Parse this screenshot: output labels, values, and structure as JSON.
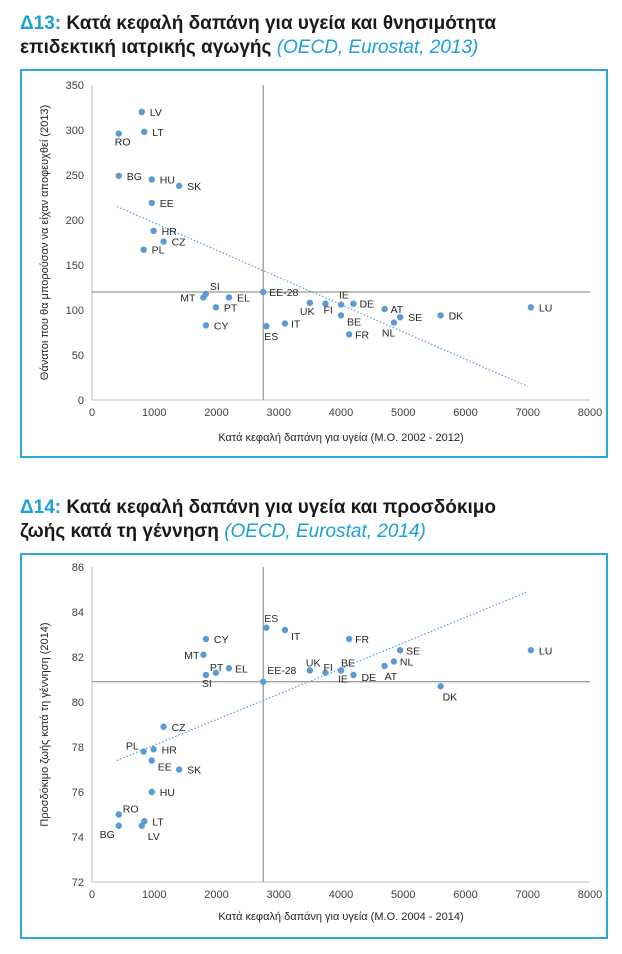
{
  "charts": [
    {
      "code": "Δ13:",
      "title": "Κατά κεφαλή δαπάνη για υγεία και θνησιμότητα επιδεκτική ιατρικής αγωγής",
      "title_line1": "Κατά κεφαλή δαπάνη για υγεία και θνησιμότητα",
      "title_line2": "επιδεκτική ιατρικής αγωγής",
      "source": "(OECD, Eurostat, 2013)"
    },
    {
      "code": "Δ14:",
      "title": "Κατά κεφαλή δαπάνη για υγεία και προσδόκιμο ζωής κατά τη γέννηση",
      "title_line1": "Κατά κεφαλή δαπάνη για υγεία και προσδόκιμο",
      "title_line2": "ζωής κατά τη γέννηση",
      "source": "(OECD, Eurostat, 2014)"
    }
  ],
  "colors": {
    "accent": "#1ba1d8",
    "point": "#5b9bd5",
    "trend": "#5b9bd5",
    "axis": "#7f7f7f"
  },
  "chart_data": [
    {
      "type": "scatter",
      "xlabel": "Κατά κεφαλή δαπάνη για υγεία (Μ.Ο. 2002 - 2012)",
      "ylabel": "Θάνατοι που θα μπορούσαν να είχαν αποφευχθεί (2013)",
      "xlim": [
        0,
        8000
      ],
      "ylim": [
        0,
        350
      ],
      "xticks": [
        0,
        1000,
        2000,
        3000,
        4000,
        5000,
        6000,
        7000,
        8000
      ],
      "yticks": [
        0,
        50,
        100,
        150,
        200,
        250,
        300,
        350
      ],
      "reference_lines": {
        "x": 2750,
        "y": 120
      },
      "trendline": [
        [
          400,
          215
        ],
        [
          7000,
          15
        ]
      ],
      "grid": false,
      "points": [
        {
          "label": "LV",
          "x": 800,
          "y": 320
        },
        {
          "label": "RO",
          "x": 430,
          "y": 296
        },
        {
          "label": "LT",
          "x": 840,
          "y": 298
        },
        {
          "label": "BG",
          "x": 430,
          "y": 249
        },
        {
          "label": "HU",
          "x": 960,
          "y": 245
        },
        {
          "label": "SK",
          "x": 1400,
          "y": 238
        },
        {
          "label": "EE",
          "x": 960,
          "y": 219
        },
        {
          "label": "HR",
          "x": 990,
          "y": 188
        },
        {
          "label": "CZ",
          "x": 1150,
          "y": 176
        },
        {
          "label": "PL",
          "x": 830,
          "y": 167
        },
        {
          "label": "SI",
          "x": 1830,
          "y": 118
        },
        {
          "label": "MT",
          "x": 1790,
          "y": 114
        },
        {
          "label": "EL",
          "x": 2200,
          "y": 114
        },
        {
          "label": "PT",
          "x": 1990,
          "y": 103
        },
        {
          "label": "CY",
          "x": 1830,
          "y": 83
        },
        {
          "label": "EE-28",
          "x": 2750,
          "y": 120
        },
        {
          "label": "ES",
          "x": 2800,
          "y": 82
        },
        {
          "label": "IT",
          "x": 3100,
          "y": 85
        },
        {
          "label": "UK",
          "x": 3500,
          "y": 108
        },
        {
          "label": "FI",
          "x": 3750,
          "y": 107
        },
        {
          "label": "IE",
          "x": 4000,
          "y": 106
        },
        {
          "label": "BE",
          "x": 4000,
          "y": 94
        },
        {
          "label": "DE",
          "x": 4200,
          "y": 107
        },
        {
          "label": "FR",
          "x": 4130,
          "y": 73
        },
        {
          "label": "AT",
          "x": 4700,
          "y": 101
        },
        {
          "label": "SE",
          "x": 4950,
          "y": 92
        },
        {
          "label": "NL",
          "x": 4850,
          "y": 86
        },
        {
          "label": "DK",
          "x": 5600,
          "y": 94
        },
        {
          "label": "LU",
          "x": 7050,
          "y": 103
        }
      ]
    },
    {
      "type": "scatter",
      "xlabel": "Κατά κεφαλή δαπάνη για υγεία (Μ.Ο. 2004 - 2014)",
      "ylabel": "Προσδόκιμο ζωής κατά τη γέννηση (2014)",
      "xlim": [
        0,
        8000
      ],
      "ylim": [
        72,
        86
      ],
      "xticks": [
        0,
        1000,
        2000,
        3000,
        4000,
        5000,
        6000,
        7000,
        8000
      ],
      "yticks": [
        72,
        74,
        76,
        78,
        80,
        82,
        84,
        86
      ],
      "reference_lines": {
        "x": 2750,
        "y": 80.9
      },
      "trendline": [
        [
          400,
          77.4
        ],
        [
          7000,
          84.9
        ]
      ],
      "grid": false,
      "points": [
        {
          "label": "ES",
          "x": 2800,
          "y": 83.3
        },
        {
          "label": "IT",
          "x": 3100,
          "y": 83.2
        },
        {
          "label": "CY",
          "x": 1830,
          "y": 82.8
        },
        {
          "label": "FR",
          "x": 4130,
          "y": 82.8
        },
        {
          "label": "MT",
          "x": 1790,
          "y": 82.1
        },
        {
          "label": "SE",
          "x": 4950,
          "y": 82.3
        },
        {
          "label": "LU",
          "x": 7050,
          "y": 82.3
        },
        {
          "label": "NL",
          "x": 4850,
          "y": 81.8
        },
        {
          "label": "PT",
          "x": 1990,
          "y": 81.3
        },
        {
          "label": "EL",
          "x": 2200,
          "y": 81.5
        },
        {
          "label": "SI",
          "x": 1830,
          "y": 81.2
        },
        {
          "label": "UK",
          "x": 3500,
          "y": 81.4
        },
        {
          "label": "FI",
          "x": 3750,
          "y": 81.3
        },
        {
          "label": "BE",
          "x": 4000,
          "y": 81.4
        },
        {
          "label": "IE",
          "x": 4000,
          "y": 81.4
        },
        {
          "label": "DE",
          "x": 4200,
          "y": 81.2
        },
        {
          "label": "AT",
          "x": 4700,
          "y": 81.6
        },
        {
          "label": "EE-28",
          "x": 2750,
          "y": 80.9
        },
        {
          "label": "DK",
          "x": 5600,
          "y": 80.7
        },
        {
          "label": "CZ",
          "x": 1150,
          "y": 78.9
        },
        {
          "label": "PL",
          "x": 830,
          "y": 77.8
        },
        {
          "label": "HR",
          "x": 990,
          "y": 77.9
        },
        {
          "label": "EE",
          "x": 960,
          "y": 77.4
        },
        {
          "label": "SK",
          "x": 1400,
          "y": 77.0
        },
        {
          "label": "HU",
          "x": 960,
          "y": 76.0
        },
        {
          "label": "RO",
          "x": 430,
          "y": 75.0
        },
        {
          "label": "LT",
          "x": 840,
          "y": 74.7
        },
        {
          "label": "BG",
          "x": 430,
          "y": 74.5
        },
        {
          "label": "LV",
          "x": 800,
          "y": 74.5
        }
      ]
    }
  ]
}
